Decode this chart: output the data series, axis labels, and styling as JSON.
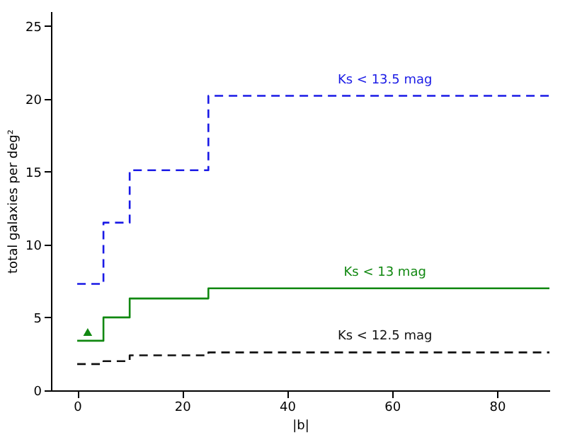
{
  "chart_data": {
    "type": "step",
    "xlabel": "|b|",
    "ylabel": "total galaxies per deg²",
    "xlim": [
      -5,
      90
    ],
    "xticks": [
      0,
      20,
      40,
      60,
      80
    ],
    "ylim": [
      0,
      26
    ],
    "yticks": [
      0,
      5,
      10,
      15,
      20,
      25
    ],
    "grid": false,
    "series": [
      {
        "color": "#1a1ae6",
        "line_style": "dashed",
        "x": [
          0,
          5,
          10,
          25,
          90
        ],
        "values": [
          7.3,
          11.5,
          15.1,
          20.2,
          20.2
        ]
      },
      {
        "color": "#118811",
        "line_style": "solid",
        "x": [
          0,
          5,
          10,
          25,
          90
        ],
        "values": [
          3.4,
          5.0,
          6.3,
          7.0,
          7.0
        ]
      },
      {
        "color": "#111111",
        "line_style": "dashed",
        "x": [
          0,
          5,
          10,
          25,
          90
        ],
        "values": [
          1.8,
          2.0,
          2.4,
          2.6,
          2.6
        ]
      },
      {
        "type": "scatter",
        "color": "#118811",
        "marker": "triangle",
        "x": [
          2
        ],
        "values": [
          4.0
        ]
      }
    ],
    "annotations": [
      "Ks < 13.5 mag",
      "Ks < 13 mag",
      "Ks < 12.5 mag"
    ]
  }
}
